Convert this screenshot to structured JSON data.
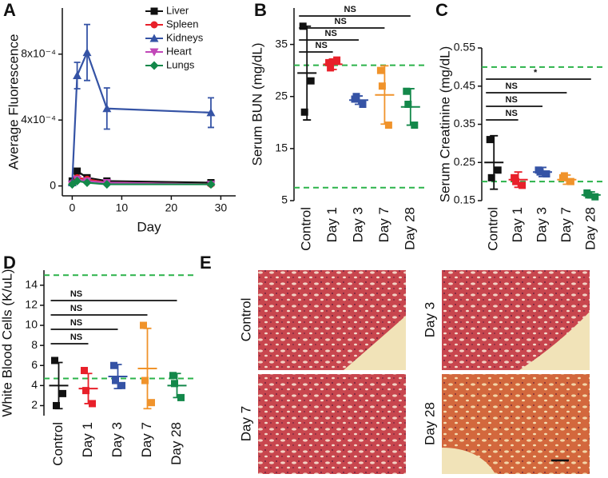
{
  "chart_data": [
    {
      "type": "line",
      "panel": "A",
      "ylabel": "Average Fluorescence",
      "xlabel": "Day",
      "x": [
        0,
        1,
        3,
        7,
        28
      ],
      "xlim": [
        -2,
        33
      ],
      "xticks": [
        0,
        10,
        20,
        30
      ],
      "ylim": [
        -6e-05,
        0.00108
      ],
      "yticks": [
        {
          "value": 0,
          "label": "0"
        },
        {
          "value": 0.0004,
          "label": "4x10⁻⁴"
        },
        {
          "value": 0.0008,
          "label": "8x10⁻⁴"
        }
      ],
      "series": [
        {
          "name": "Liver",
          "color": "#111111",
          "marker": "square",
          "values": [
            3e-05,
            9e-05,
            5e-05,
            3e-05,
            2e-05
          ]
        },
        {
          "name": "Spleen",
          "color": "#e8202a",
          "marker": "circle",
          "values": [
            2e-05,
            5e-05,
            4e-05,
            2e-05,
            1e-05
          ]
        },
        {
          "name": "Kidneys",
          "color": "#3553a5",
          "marker": "triangle",
          "values": [
            2e-05,
            0.00067,
            0.00081,
            0.00047,
            0.000445
          ],
          "errors": [
            1e-05,
            8e-05,
            0.00017,
            0.000125,
            9e-05
          ]
        },
        {
          "name": "Heart",
          "color": "#c147b8",
          "marker": "down-triangle",
          "values": [
            1e-05,
            4e-05,
            3e-05,
            2e-05,
            1e-05
          ]
        },
        {
          "name": "Lungs",
          "color": "#13884a",
          "marker": "diamond",
          "values": [
            1e-05,
            3e-05,
            2e-05,
            1e-05,
            1e-05
          ]
        }
      ]
    },
    {
      "type": "dotplot",
      "panel": "B",
      "ylabel": "Serum BUN (mg/dL)",
      "categories": [
        "Control",
        "Day 1",
        "Day 3",
        "Day 7",
        "Day 28"
      ],
      "colors": [
        "#111111",
        "#e8202a",
        "#3553a5",
        "#f0932b",
        "#13884a"
      ],
      "points": [
        [
          38.5,
          28,
          22
        ],
        [
          31.5,
          32,
          30.5
        ],
        [
          24.5,
          23.5,
          25
        ],
        [
          30,
          19.5,
          27
        ],
        [
          26,
          19.5,
          23.5
        ]
      ],
      "means": [
        29.5,
        31.2,
        24.3,
        25.3,
        23
      ],
      "sd": [
        9,
        1,
        0.8,
        5.6,
        3.5
      ],
      "ylim": [
        5,
        42
      ],
      "yticks": [
        5,
        15,
        25,
        35
      ],
      "ref_lines": [
        31,
        7.5
      ],
      "ref_color": "#2bb34a",
      "brackets": [
        {
          "from": 0,
          "to": 1,
          "label": "NS"
        },
        {
          "from": 0,
          "to": 2,
          "label": "NS"
        },
        {
          "from": 0,
          "to": 3,
          "label": "NS"
        },
        {
          "from": 0,
          "to": 4,
          "label": "NS"
        }
      ]
    },
    {
      "type": "dotplot",
      "panel": "C",
      "ylabel": "Serum Creatinine (mg/dL)",
      "categories": [
        "Control",
        "Day 1",
        "Day 3",
        "Day 7",
        "Day 28"
      ],
      "colors": [
        "#111111",
        "#e8202a",
        "#3553a5",
        "#f0932b",
        "#13884a"
      ],
      "points": [
        [
          0.31,
          0.23,
          0.21
        ],
        [
          0.21,
          0.19,
          0.2
        ],
        [
          0.23,
          0.22,
          0.225
        ],
        [
          0.21,
          0.2,
          0.215
        ],
        [
          0.17,
          0.16,
          0.165
        ]
      ],
      "means": [
        0.25,
        0.205,
        0.225,
        0.205,
        0.165
      ],
      "sd": [
        0.07,
        0.02,
        0.012,
        0.012,
        0.008
      ],
      "ylim": [
        0.15,
        0.55
      ],
      "yticks": [
        0.15,
        0.25,
        0.35,
        0.45,
        0.55
      ],
      "ref_lines": [
        0.5,
        0.2
      ],
      "ref_color": "#2bb34a",
      "brackets": [
        {
          "from": 0,
          "to": 1,
          "label": "NS"
        },
        {
          "from": 0,
          "to": 2,
          "label": "NS"
        },
        {
          "from": 0,
          "to": 3,
          "label": "NS"
        },
        {
          "from": 0,
          "to": 4,
          "label": "*"
        }
      ]
    },
    {
      "type": "dotplot",
      "panel": "D",
      "ylabel": "White Blood Cells (K/uL)",
      "categories": [
        "Control",
        "Day 1",
        "Day 3",
        "Day 7",
        "Day 28"
      ],
      "colors": [
        "#111111",
        "#e8202a",
        "#3553a5",
        "#f0932b",
        "#13884a"
      ],
      "points": [
        [
          6.5,
          3.2,
          2
        ],
        [
          5.5,
          2.2,
          3.5
        ],
        [
          6,
          4,
          4.5
        ],
        [
          10,
          2.3,
          4.5
        ],
        [
          5,
          2.8,
          4.2
        ]
      ],
      "means": [
        4,
        3.7,
        4.9,
        5.7,
        4
      ],
      "sd": [
        2.3,
        1.5,
        1.2,
        4,
        1.2
      ],
      "ylim": [
        1,
        15.5
      ],
      "yticks": [
        2,
        4,
        6,
        8,
        10,
        12,
        14
      ],
      "ref_lines": [
        15,
        4.7
      ],
      "ref_color": "#2bb34a",
      "brackets": [
        {
          "from": 0,
          "to": 1,
          "label": "NS"
        },
        {
          "from": 0,
          "to": 2,
          "label": "NS"
        },
        {
          "from": 0,
          "to": 3,
          "label": "NS"
        },
        {
          "from": 0,
          "to": 4,
          "label": "NS"
        }
      ]
    }
  ],
  "histology": {
    "panel": "E",
    "images": [
      {
        "label": "Control"
      },
      {
        "label": "Day 3"
      },
      {
        "label": "Day 7"
      },
      {
        "label": "Day 28"
      }
    ]
  }
}
